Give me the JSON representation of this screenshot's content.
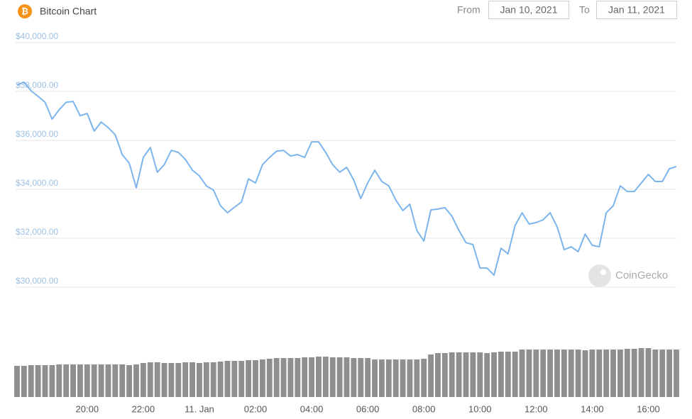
{
  "chart_data": {
    "type": "line",
    "title": "Bitcoin Chart",
    "x": [
      17.5,
      17.75,
      18,
      18.25,
      18.5,
      18.75,
      19,
      19.25,
      19.5,
      19.75,
      20,
      20.25,
      20.5,
      20.75,
      21,
      21.25,
      21.5,
      21.75,
      22,
      22.25,
      22.5,
      22.75,
      23,
      23.25,
      23.5,
      23.75,
      24,
      24.25,
      24.5,
      24.75,
      25,
      25.25,
      25.5,
      25.75,
      26,
      26.25,
      26.5,
      26.75,
      27,
      27.25,
      27.5,
      27.75,
      28,
      28.25,
      28.5,
      28.75,
      29,
      29.25,
      29.5,
      29.75,
      30,
      30.25,
      30.5,
      30.75,
      31,
      31.25,
      31.5,
      31.75,
      32,
      32.25,
      32.5,
      32.75,
      33,
      33.25,
      33.5,
      33.75,
      34,
      34.25,
      34.5,
      34.75,
      35,
      35.25,
      35.5,
      35.75,
      36,
      36.25,
      36.5,
      36.75,
      37,
      37.25,
      37.5,
      37.75,
      38,
      38.25,
      38.5,
      38.75,
      39,
      39.25,
      39.5,
      39.75,
      40,
      40.25,
      40.5,
      40.75,
      41
    ],
    "series": [
      {
        "color": "#7cb5ec",
        "values": [
          38260,
          38380,
          38030,
          37800,
          37560,
          36870,
          37250,
          37560,
          37590,
          37010,
          37100,
          36380,
          36750,
          36520,
          36230,
          35420,
          35070,
          34060,
          35300,
          35710,
          34700,
          35010,
          35590,
          35510,
          35220,
          34780,
          34550,
          34140,
          33970,
          33330,
          33040,
          33270,
          33480,
          34430,
          34260,
          35010,
          35300,
          35560,
          35590,
          35360,
          35420,
          35300,
          35940,
          35940,
          35510,
          35010,
          34700,
          34900,
          34380,
          33620,
          34260,
          34780,
          34320,
          34140,
          33560,
          33130,
          33390,
          32320,
          31880,
          33160,
          33190,
          33250,
          32900,
          32320,
          31820,
          31740,
          30780,
          30780,
          30490,
          31590,
          31360,
          32520,
          33040,
          32580,
          32640,
          32750,
          33040,
          32460,
          31530,
          31650,
          31450,
          32170,
          31710,
          31650,
          33040,
          33330,
          34140,
          33910,
          33910,
          34260,
          34610,
          34320,
          34320,
          34840,
          34930
        ]
      }
    ],
    "volume": {
      "color": "#8f8f8f",
      "values": [
        44,
        44,
        45,
        45,
        45,
        45,
        46,
        46,
        46,
        46,
        46,
        46,
        46,
        46,
        46,
        46,
        45,
        46,
        48,
        49,
        49,
        48,
        48,
        48,
        49,
        49,
        48,
        49,
        49,
        50,
        51,
        51,
        51,
        52,
        52,
        53,
        54,
        55,
        55,
        55,
        55,
        56,
        56,
        57,
        57,
        56,
        56,
        56,
        55,
        55,
        55,
        53,
        53,
        53,
        53,
        53,
        53,
        53,
        54,
        60,
        62,
        62,
        63,
        63,
        63,
        63,
        63,
        62,
        63,
        64,
        64,
        64,
        67,
        67,
        67,
        67,
        67,
        67,
        67,
        67,
        67,
        66,
        67,
        67,
        67,
        67,
        67,
        68,
        68,
        69,
        69,
        67,
        67,
        67,
        67
      ]
    },
    "xlim": [
      17.45,
      41
    ],
    "xticks": [
      {
        "value": 20,
        "label": "20:00"
      },
      {
        "value": 22,
        "label": "22:00"
      },
      {
        "value": 24,
        "label": "11. Jan"
      },
      {
        "value": 26,
        "label": "02:00"
      },
      {
        "value": 28,
        "label": "04:00"
      },
      {
        "value": 30,
        "label": "06:00"
      },
      {
        "value": 32,
        "label": "08:00"
      },
      {
        "value": 34,
        "label": "10:00"
      },
      {
        "value": 36,
        "label": "12:00"
      },
      {
        "value": 38,
        "label": "14:00"
      },
      {
        "value": 40,
        "label": "16:00"
      }
    ],
    "ylim": [
      30000,
      40000
    ],
    "yticks": [
      {
        "value": 30000,
        "label": "$30,000.00"
      },
      {
        "value": 32000,
        "label": "$32,000.00"
      },
      {
        "value": 34000,
        "label": "$34,000.00"
      },
      {
        "value": 36000,
        "label": "$36,000.00"
      },
      {
        "value": 38000,
        "label": "$38,000.00"
      },
      {
        "value": 40000,
        "label": "$40,000.00"
      }
    ],
    "grid": true,
    "watermark": "CoinGecko"
  },
  "controls": {
    "from_label": "From",
    "from_date": "Jan 10, 2021",
    "to_label": "To",
    "to_date": "Jan 11, 2021"
  }
}
